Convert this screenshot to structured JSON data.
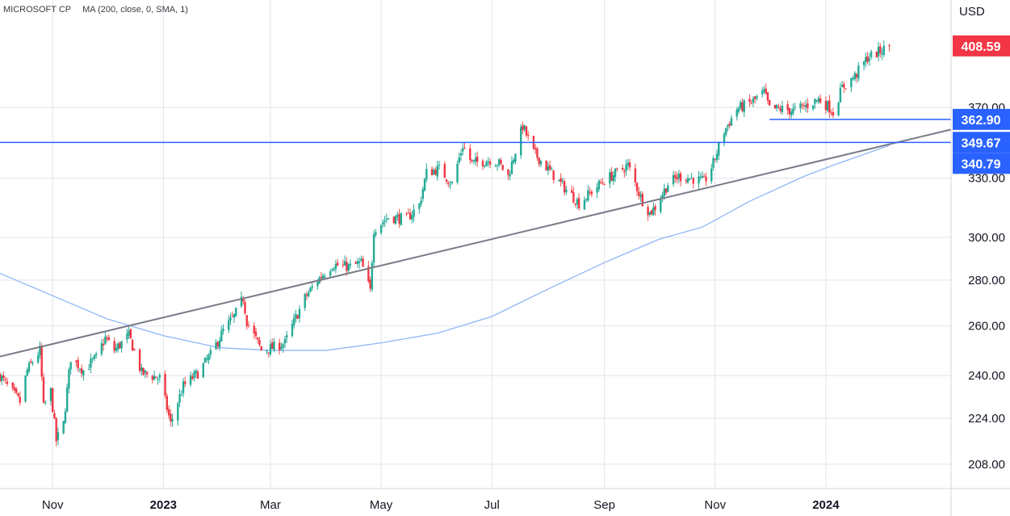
{
  "legend": {
    "symbol": "MICROSOFT CP",
    "indicator": "MA (200, close, 0, SMA, 1)"
  },
  "currency_label": "USD",
  "chart_data": {
    "type": "candlestick",
    "title": "MICROSOFT CP",
    "y_axis": {
      "scale": "log",
      "ticks": [
        208,
        224,
        240,
        260,
        280,
        300,
        330,
        370
      ],
      "tick_labels": [
        "208.00",
        "224.00",
        "240.00",
        "260.00",
        "280.00",
        "300.00",
        "330.00",
        "370.00"
      ],
      "range": [
        200,
        440
      ]
    },
    "x_axis": {
      "ticks": [
        "2022-11-01",
        "2023-01-01",
        "2023-03-01",
        "2023-05-01",
        "2023-07-01",
        "2023-09-01",
        "2023-11-01",
        "2024-01-01"
      ],
      "tick_labels": [
        "Nov",
        "2023",
        "Mar",
        "May",
        "Jul",
        "Sep",
        "Nov",
        "2024"
      ],
      "bold_labels": [
        "2023",
        "2024"
      ],
      "range": [
        "2022-10-03",
        "2024-03-10"
      ]
    },
    "price_anchors": [
      [
        "2022-10-03",
        240
      ],
      [
        "2022-10-07",
        236
      ],
      [
        "2022-10-14",
        230
      ],
      [
        "2022-10-18",
        242
      ],
      [
        "2022-10-25",
        250
      ],
      [
        "2022-10-27",
        228
      ],
      [
        "2022-10-31",
        234
      ],
      [
        "2022-11-03",
        216
      ],
      [
        "2022-11-07",
        222
      ],
      [
        "2022-11-11",
        247
      ],
      [
        "2022-11-18",
        242
      ],
      [
        "2022-11-25",
        247
      ],
      [
        "2022-11-30",
        255
      ],
      [
        "2022-12-05",
        250
      ],
      [
        "2022-12-13",
        256
      ],
      [
        "2022-12-20",
        241
      ],
      [
        "2022-12-30",
        239
      ],
      [
        "2023-01-05",
        222
      ],
      [
        "2023-01-12",
        236
      ],
      [
        "2023-01-20",
        241
      ],
      [
        "2023-01-27",
        248
      ],
      [
        "2023-02-03",
        258
      ],
      [
        "2023-02-09",
        264
      ],
      [
        "2023-02-14",
        272
      ],
      [
        "2023-02-16",
        262
      ],
      [
        "2023-02-24",
        250
      ],
      [
        "2023-03-02",
        251
      ],
      [
        "2023-03-09",
        253
      ],
      [
        "2023-03-13",
        260
      ],
      [
        "2023-03-20",
        272
      ],
      [
        "2023-03-27",
        280
      ],
      [
        "2023-04-04",
        287
      ],
      [
        "2023-04-14",
        286
      ],
      [
        "2023-04-20",
        288
      ],
      [
        "2023-04-25",
        275
      ],
      [
        "2023-04-27",
        304
      ],
      [
        "2023-05-05",
        310
      ],
      [
        "2023-05-15",
        309
      ],
      [
        "2023-05-22",
        316
      ],
      [
        "2023-05-26",
        333
      ],
      [
        "2023-06-02",
        335
      ],
      [
        "2023-06-09",
        327
      ],
      [
        "2023-06-15",
        348
      ],
      [
        "2023-06-20",
        338
      ],
      [
        "2023-06-30",
        340
      ],
      [
        "2023-07-05",
        338
      ],
      [
        "2023-07-10",
        331
      ],
      [
        "2023-07-14",
        345
      ],
      [
        "2023-07-18",
        359
      ],
      [
        "2023-07-24",
        344
      ],
      [
        "2023-07-31",
        336
      ],
      [
        "2023-08-08",
        327
      ],
      [
        "2023-08-18",
        317
      ],
      [
        "2023-08-25",
        323
      ],
      [
        "2023-09-01",
        329
      ],
      [
        "2023-09-08",
        333
      ],
      [
        "2023-09-14",
        337
      ],
      [
        "2023-09-21",
        320
      ],
      [
        "2023-09-26",
        312
      ],
      [
        "2023-09-29",
        315
      ],
      [
        "2023-10-06",
        327
      ],
      [
        "2023-10-12",
        331
      ],
      [
        "2023-10-19",
        330
      ],
      [
        "2023-10-23",
        329
      ],
      [
        "2023-10-26",
        328
      ],
      [
        "2023-10-31",
        338
      ],
      [
        "2023-11-06",
        356
      ],
      [
        "2023-11-13",
        369
      ],
      [
        "2023-11-21",
        373
      ],
      [
        "2023-11-28",
        379
      ],
      [
        "2023-12-01",
        369
      ],
      [
        "2023-12-07",
        369
      ],
      [
        "2023-12-14",
        368
      ],
      [
        "2023-12-21",
        371
      ],
      [
        "2023-12-28",
        375
      ],
      [
        "2024-01-03",
        370
      ],
      [
        "2024-01-05",
        367
      ],
      [
        "2024-01-10",
        382
      ],
      [
        "2024-01-17",
        389
      ],
      [
        "2024-01-24",
        401
      ],
      [
        "2024-01-31",
        405
      ],
      [
        "2024-02-05",
        408.59
      ]
    ],
    "series": [
      {
        "name": "MA (200, close, 0, SMA, 1)",
        "type": "line",
        "color": "#90b6f5",
        "points": [
          [
            "2022-10-03",
            283
          ],
          [
            "2022-11-01",
            273
          ],
          [
            "2022-12-01",
            263
          ],
          [
            "2023-01-01",
            256
          ],
          [
            "2023-02-01",
            251
          ],
          [
            "2023-03-01",
            250
          ],
          [
            "2023-04-01",
            250
          ],
          [
            "2023-05-01",
            253
          ],
          [
            "2023-06-01",
            257
          ],
          [
            "2023-07-01",
            264
          ],
          [
            "2023-08-01",
            276
          ],
          [
            "2023-09-01",
            288
          ],
          [
            "2023-10-01",
            299
          ],
          [
            "2023-10-25",
            305
          ],
          [
            "2023-11-20",
            318
          ],
          [
            "2023-12-20",
            331
          ],
          [
            "2024-01-05",
            337
          ],
          [
            "2024-02-05",
            348
          ]
        ]
      }
    ],
    "trendline": {
      "color": "#787b86",
      "points": [
        [
          "2022-10-03",
          247.5
        ],
        [
          "2024-03-10",
          357
        ]
      ]
    },
    "horizontal_lines": [
      {
        "value": 349.67,
        "color": "#2962ff",
        "from": "2022-10-03"
      },
      {
        "value": 362.9,
        "color": "#2962ff",
        "from": "2023-12-01"
      }
    ],
    "price_labels": [
      {
        "value": 408.59,
        "text": "408.59",
        "color": "#f23645"
      },
      {
        "value": 362.9,
        "text": "362.90",
        "color": "#2962ff"
      },
      {
        "value": 349.67,
        "text": "349.67",
        "color": "#2962ff"
      },
      {
        "value": 340.79,
        "text": "340.79",
        "color": "#2962ff"
      }
    ],
    "colors": {
      "up": "#26a69a",
      "down": "#ef5350",
      "up_body": "#22ab94",
      "down_body": "#f23645",
      "grid": "#e0e3eb"
    },
    "grid": true
  }
}
